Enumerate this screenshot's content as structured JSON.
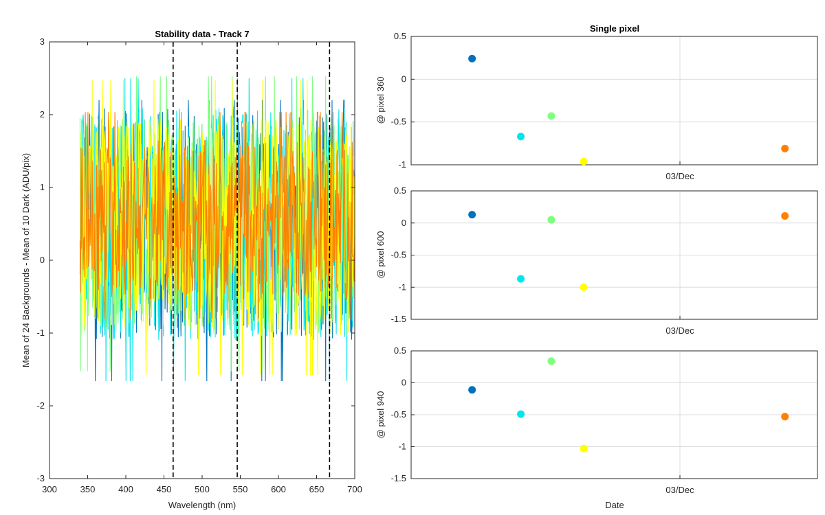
{
  "chart_data": [
    {
      "type": "line",
      "title": "Stability data - Track 7",
      "xlabel": "Wavelength (nm)",
      "ylabel": "Mean of 24 Backgrounds - Mean of 10 Dark (ADU/pix)",
      "xlim": [
        300,
        700
      ],
      "ylim": [
        -3,
        3
      ],
      "xticks": [
        300,
        350,
        400,
        450,
        500,
        550,
        600,
        650,
        700
      ],
      "yticks": [
        -3,
        -2,
        -1,
        0,
        1,
        2,
        3
      ],
      "x_range_of_data": [
        340,
        700
      ],
      "series": [
        {
          "color": "#0072BD",
          "mean": 0.5,
          "noise_halfwidth": 1.6,
          "min": -2.1,
          "max": 2.2
        },
        {
          "color": "#00E5EE",
          "mean": 0.5,
          "noise_halfwidth": 1.6,
          "min": -1.9,
          "max": 2.5
        },
        {
          "color": "#7FFF7F",
          "mean": 0.5,
          "noise_halfwidth": 1.5,
          "min": -1.7,
          "max": 2.6
        },
        {
          "color": "#FFFF00",
          "mean": 0.45,
          "noise_halfwidth": 1.5,
          "min": -2.2,
          "max": 2.5
        },
        {
          "color": "#FF8000",
          "mean": 0.55,
          "noise_halfwidth": 1.1,
          "min": -0.8,
          "max": 2.65
        }
      ],
      "vertical_dashed_lines_x": [
        462,
        546,
        667
      ]
    },
    {
      "type": "scatter",
      "title": "Single pixel",
      "ylabel": "@ pixel 360",
      "xtick_label": "03/Dec",
      "ylim": [
        -1,
        0.5
      ],
      "yticks": [
        -1,
        -0.5,
        0,
        0.5
      ],
      "yticklabels": [
        "-1",
        "-0.5",
        "0",
        "0.5"
      ],
      "points": [
        {
          "x": 0.15,
          "y": 0.24,
          "color": "#0072BD"
        },
        {
          "x": 0.27,
          "y": -0.67,
          "color": "#00E5EE"
        },
        {
          "x": 0.345,
          "y": -0.43,
          "color": "#7FFF7F"
        },
        {
          "x": 0.425,
          "y": -0.96,
          "color": "#FFFF00"
        },
        {
          "x": 0.92,
          "y": -0.81,
          "color": "#FF8000"
        }
      ]
    },
    {
      "type": "scatter",
      "ylabel": "@ pixel 600",
      "xtick_label": "03/Dec",
      "ylim": [
        -1.5,
        0.5
      ],
      "yticks": [
        -1.5,
        -1,
        -0.5,
        0,
        0.5
      ],
      "yticklabels": [
        "-1.5",
        "-1",
        "-0.5",
        "0",
        "0.5"
      ],
      "points": [
        {
          "x": 0.15,
          "y": 0.13,
          "color": "#0072BD"
        },
        {
          "x": 0.27,
          "y": -0.87,
          "color": "#00E5EE"
        },
        {
          "x": 0.345,
          "y": 0.05,
          "color": "#7FFF7F"
        },
        {
          "x": 0.425,
          "y": -1.0,
          "color": "#FFFF00"
        },
        {
          "x": 0.92,
          "y": 0.11,
          "color": "#FF8000"
        }
      ]
    },
    {
      "type": "scatter",
      "ylabel": "@ pixel 940",
      "xlabel": "Date",
      "xtick_label": "03/Dec",
      "ylim": [
        -1.5,
        0.5
      ],
      "yticks": [
        -1.5,
        -1,
        -0.5,
        0,
        0.5
      ],
      "yticklabels": [
        "-1.5",
        "-1",
        "-0.5",
        "0",
        "0.5"
      ],
      "points": [
        {
          "x": 0.15,
          "y": -0.11,
          "color": "#0072BD"
        },
        {
          "x": 0.27,
          "y": -0.49,
          "color": "#00E5EE"
        },
        {
          "x": 0.345,
          "y": 0.34,
          "color": "#7FFF7F"
        },
        {
          "x": 0.425,
          "y": -1.03,
          "color": "#FFFF00"
        },
        {
          "x": 0.92,
          "y": -0.53,
          "color": "#FF8000"
        }
      ]
    }
  ]
}
